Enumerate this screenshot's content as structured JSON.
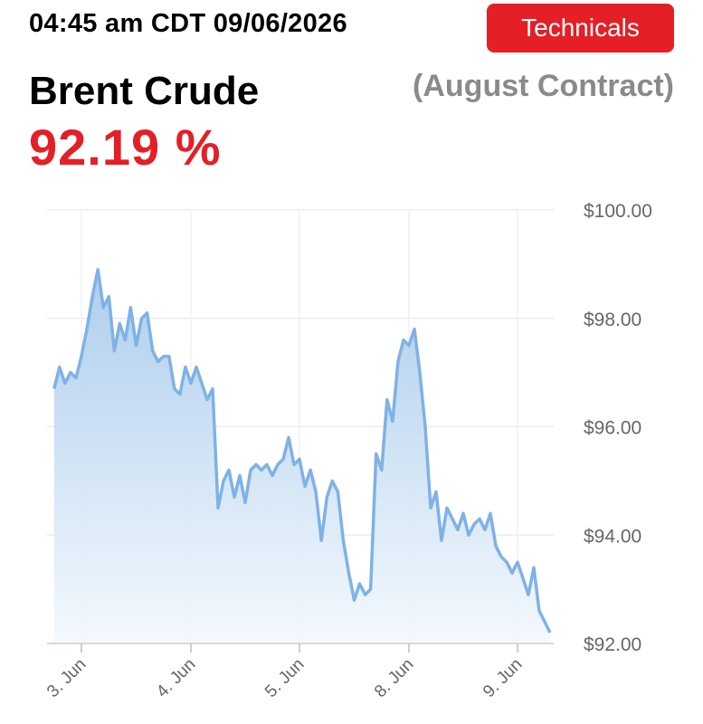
{
  "header": {
    "timestamp": "04:45 am CDT 09/06/2026",
    "technicals_label": "Technicals",
    "instrument": "Brent Crude",
    "contract": "(August Contract)",
    "price_change": "92.19 %"
  },
  "colors": {
    "accent_red": "#e41f26",
    "line": "#7fb2e5",
    "fill_top": "#a9cbec",
    "fill_bottom": "#f2f8fd"
  },
  "chart_data": {
    "type": "area",
    "ylim": [
      92,
      100
    ],
    "yticks": [
      100,
      98,
      96,
      94,
      92
    ],
    "ytick_labels": [
      "$100.00",
      "$98.00",
      "$96.00",
      "$94.00",
      "$92.00"
    ],
    "xtick_labels": [
      "3. Jun",
      "4. Jun",
      "5. Jun",
      "8. Jun",
      "9. Jun"
    ],
    "x_domain": [
      -0.25,
      4.33
    ],
    "grid": true,
    "series": [
      {
        "values": [
          [
            -0.25,
            96.7
          ],
          [
            -0.2,
            97.1
          ],
          [
            -0.15,
            96.8
          ],
          [
            -0.1,
            97.0
          ],
          [
            -0.05,
            96.9
          ],
          [
            0.0,
            97.3
          ],
          [
            0.05,
            97.8
          ],
          [
            0.1,
            98.4
          ],
          [
            0.15,
            98.9
          ],
          [
            0.2,
            98.2
          ],
          [
            0.25,
            98.4
          ],
          [
            0.3,
            97.4
          ],
          [
            0.35,
            97.9
          ],
          [
            0.4,
            97.6
          ],
          [
            0.45,
            98.2
          ],
          [
            0.5,
            97.5
          ],
          [
            0.55,
            98.0
          ],
          [
            0.6,
            98.1
          ],
          [
            0.65,
            97.4
          ],
          [
            0.7,
            97.2
          ],
          [
            0.75,
            97.3
          ],
          [
            0.8,
            97.3
          ],
          [
            0.85,
            96.7
          ],
          [
            0.9,
            96.6
          ],
          [
            0.95,
            97.1
          ],
          [
            1.0,
            96.8
          ],
          [
            1.05,
            97.1
          ],
          [
            1.1,
            96.8
          ],
          [
            1.15,
            96.5
          ],
          [
            1.2,
            96.7
          ],
          [
            1.25,
            94.5
          ],
          [
            1.3,
            95.0
          ],
          [
            1.35,
            95.2
          ],
          [
            1.4,
            94.7
          ],
          [
            1.45,
            95.1
          ],
          [
            1.5,
            94.6
          ],
          [
            1.55,
            95.2
          ],
          [
            1.6,
            95.3
          ],
          [
            1.65,
            95.2
          ],
          [
            1.7,
            95.3
          ],
          [
            1.75,
            95.1
          ],
          [
            1.8,
            95.3
          ],
          [
            1.85,
            95.4
          ],
          [
            1.9,
            95.8
          ],
          [
            1.95,
            95.3
          ],
          [
            2.0,
            95.4
          ],
          [
            2.05,
            94.9
          ],
          [
            2.1,
            95.2
          ],
          [
            2.15,
            94.8
          ],
          [
            2.2,
            93.9
          ],
          [
            2.25,
            94.7
          ],
          [
            2.3,
            95.0
          ],
          [
            2.35,
            94.8
          ],
          [
            2.4,
            93.9
          ],
          [
            2.45,
            93.3
          ],
          [
            2.5,
            92.8
          ],
          [
            2.55,
            93.1
          ],
          [
            2.6,
            92.9
          ],
          [
            2.65,
            93.0
          ],
          [
            2.7,
            95.5
          ],
          [
            2.75,
            95.2
          ],
          [
            2.8,
            96.5
          ],
          [
            2.85,
            96.1
          ],
          [
            2.9,
            97.2
          ],
          [
            2.95,
            97.6
          ],
          [
            3.0,
            97.5
          ],
          [
            3.05,
            97.8
          ],
          [
            3.1,
            97.0
          ],
          [
            3.15,
            96.0
          ],
          [
            3.2,
            94.5
          ],
          [
            3.25,
            94.8
          ],
          [
            3.3,
            93.9
          ],
          [
            3.35,
            94.5
          ],
          [
            3.4,
            94.3
          ],
          [
            3.45,
            94.1
          ],
          [
            3.5,
            94.4
          ],
          [
            3.55,
            94.0
          ],
          [
            3.6,
            94.2
          ],
          [
            3.65,
            94.3
          ],
          [
            3.7,
            94.1
          ],
          [
            3.75,
            94.4
          ],
          [
            3.8,
            93.8
          ],
          [
            3.85,
            93.6
          ],
          [
            3.9,
            93.5
          ],
          [
            3.95,
            93.3
          ],
          [
            4.0,
            93.5
          ],
          [
            4.05,
            93.2
          ],
          [
            4.1,
            92.9
          ],
          [
            4.15,
            93.4
          ],
          [
            4.2,
            92.6
          ],
          [
            4.25,
            92.4
          ],
          [
            4.3,
            92.2
          ]
        ]
      }
    ]
  }
}
